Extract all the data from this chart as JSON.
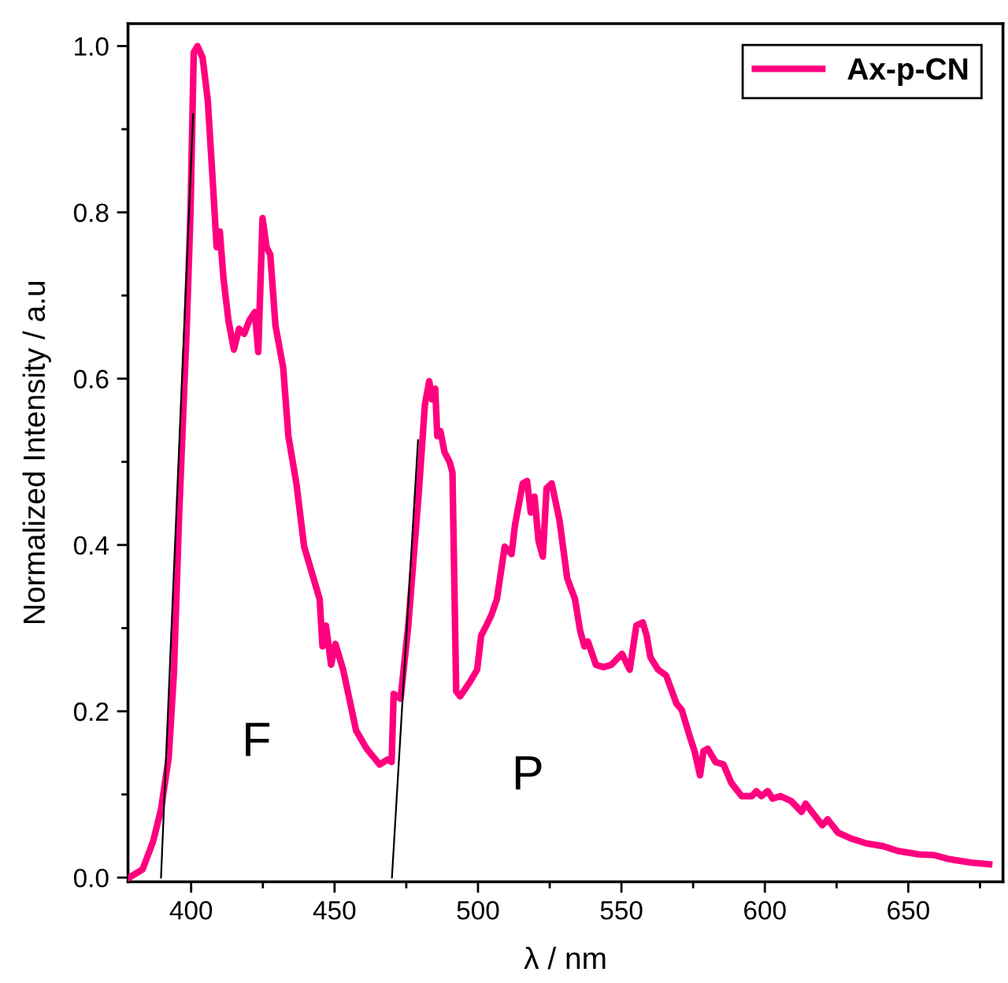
{
  "chart_data": {
    "type": "line",
    "xlabel": "λ / nm",
    "ylabel": "Normalized Intensity / a.u",
    "xlim": [
      378,
      683
    ],
    "ylim": [
      -0.005,
      1.027
    ],
    "xticks": [
      400,
      {
        "value": 425,
        "label": null
      },
      450,
      {
        "value": 475,
        "label": null
      },
      500,
      {
        "value": 525,
        "label": null
      },
      550,
      {
        "value": 575,
        "label": null
      },
      600,
      {
        "value": 625,
        "label": null
      },
      650,
      {
        "value": 675,
        "label": null
      }
    ],
    "yticks": [
      {
        "value": 0,
        "label": "0.0"
      },
      {
        "value": 0.1,
        "label": null
      },
      0.2,
      {
        "value": 0.3,
        "label": null
      },
      0.4,
      {
        "value": 0.5,
        "label": null
      },
      0.6,
      {
        "value": 0.7,
        "label": null
      },
      0.8,
      {
        "value": 0.9,
        "label": null
      },
      {
        "value": 1,
        "label": "1.0"
      }
    ],
    "grid": false,
    "legend": "top right",
    "marker": "none",
    "line_style": "solid",
    "annotations": [
      "F",
      "P"
    ],
    "series": [
      {
        "name": "Ax-p-CN",
        "color": "#ff007f",
        "x": [
          378.4,
          383.1,
          386.8,
          389.5,
          392.2,
          394,
          395.8,
          398.5,
          399.8,
          400.9,
          402.2,
          404,
          405.8,
          407.6,
          408.9,
          410,
          411.3,
          413,
          414.9,
          416.7,
          418.5,
          420.3,
          422.2,
          423.4,
          424.9,
          426.3,
          427.6,
          429.4,
          432.1,
          433.9,
          436.7,
          439.4,
          444.8,
          445.8,
          447,
          448.8,
          450.3,
          453,
          457.5,
          461.2,
          465.7,
          468.5,
          469.9,
          470.6,
          473,
          475.7,
          479.3,
          481.5,
          483,
          484,
          485.1,
          485.8,
          486.9,
          488.3,
          490.2,
          491.1,
          492.4,
          493.8,
          497.5,
          499.7,
          501.1,
          502.9,
          504.7,
          506.6,
          509.3,
          511.7,
          512.9,
          515.6,
          517.1,
          518.4,
          519.7,
          521.1,
          522.6,
          523.9,
          525.7,
          528.4,
          531.1,
          533.8,
          535.6,
          537.1,
          538.3,
          541.1,
          543.8,
          546.5,
          550.2,
          552.9,
          555.2,
          557.4,
          558.8,
          560.1,
          562.8,
          565.6,
          569.2,
          571,
          573.7,
          575.5,
          577.4,
          578.6,
          580.1,
          582.8,
          585.6,
          588.3,
          591.9,
          595.5,
          597,
          598.8,
          601,
          602.7,
          605.5,
          609.2,
          612.8,
          614.2,
          616.4,
          620,
          621.9,
          625.5,
          630,
          635.5,
          641,
          646.4,
          653.6,
          659.1,
          664.5,
          671.8,
          678.2
        ],
        "values": [
          0,
          0.01,
          0.044,
          0.082,
          0.145,
          0.246,
          0.435,
          0.664,
          0.803,
          0.992,
          1.0,
          0.986,
          0.935,
          0.834,
          0.758,
          0.777,
          0.72,
          0.67,
          0.635,
          0.66,
          0.654,
          0.67,
          0.68,
          0.632,
          0.793,
          0.758,
          0.749,
          0.664,
          0.613,
          0.531,
          0.474,
          0.398,
          0.335,
          0.278,
          0.303,
          0.256,
          0.281,
          0.25,
          0.177,
          0.155,
          0.136,
          0.142,
          0.139,
          0.221,
          0.215,
          0.303,
          0.46,
          0.569,
          0.597,
          0.575,
          0.588,
          0.531,
          0.537,
          0.512,
          0.499,
          0.487,
          0.224,
          0.218,
          0.237,
          0.25,
          0.291,
          0.303,
          0.316,
          0.335,
          0.398,
          0.389,
          0.424,
          0.474,
          0.477,
          0.439,
          0.458,
          0.405,
          0.386,
          0.468,
          0.474,
          0.43,
          0.36,
          0.335,
          0.297,
          0.278,
          0.284,
          0.256,
          0.253,
          0.256,
          0.269,
          0.25,
          0.303,
          0.307,
          0.291,
          0.265,
          0.25,
          0.243,
          0.209,
          0.202,
          0.171,
          0.152,
          0.123,
          0.152,
          0.155,
          0.139,
          0.136,
          0.114,
          0.098,
          0.098,
          0.104,
          0.098,
          0.104,
          0.095,
          0.098,
          0.092,
          0.079,
          0.089,
          0.079,
          0.063,
          0.07,
          0.054,
          0.047,
          0.041,
          0.038,
          0.032,
          0.028,
          0.027,
          0.022,
          0.018,
          0.016
        ]
      },
      {
        "color": "#000000",
        "x": [
          389.5,
          400.7
        ],
        "values": [
          0,
          0.918
        ]
      },
      {
        "color": "#000000",
        "x": [
          470,
          479.1
        ],
        "values": [
          0,
          0.526
        ]
      }
    ]
  }
}
